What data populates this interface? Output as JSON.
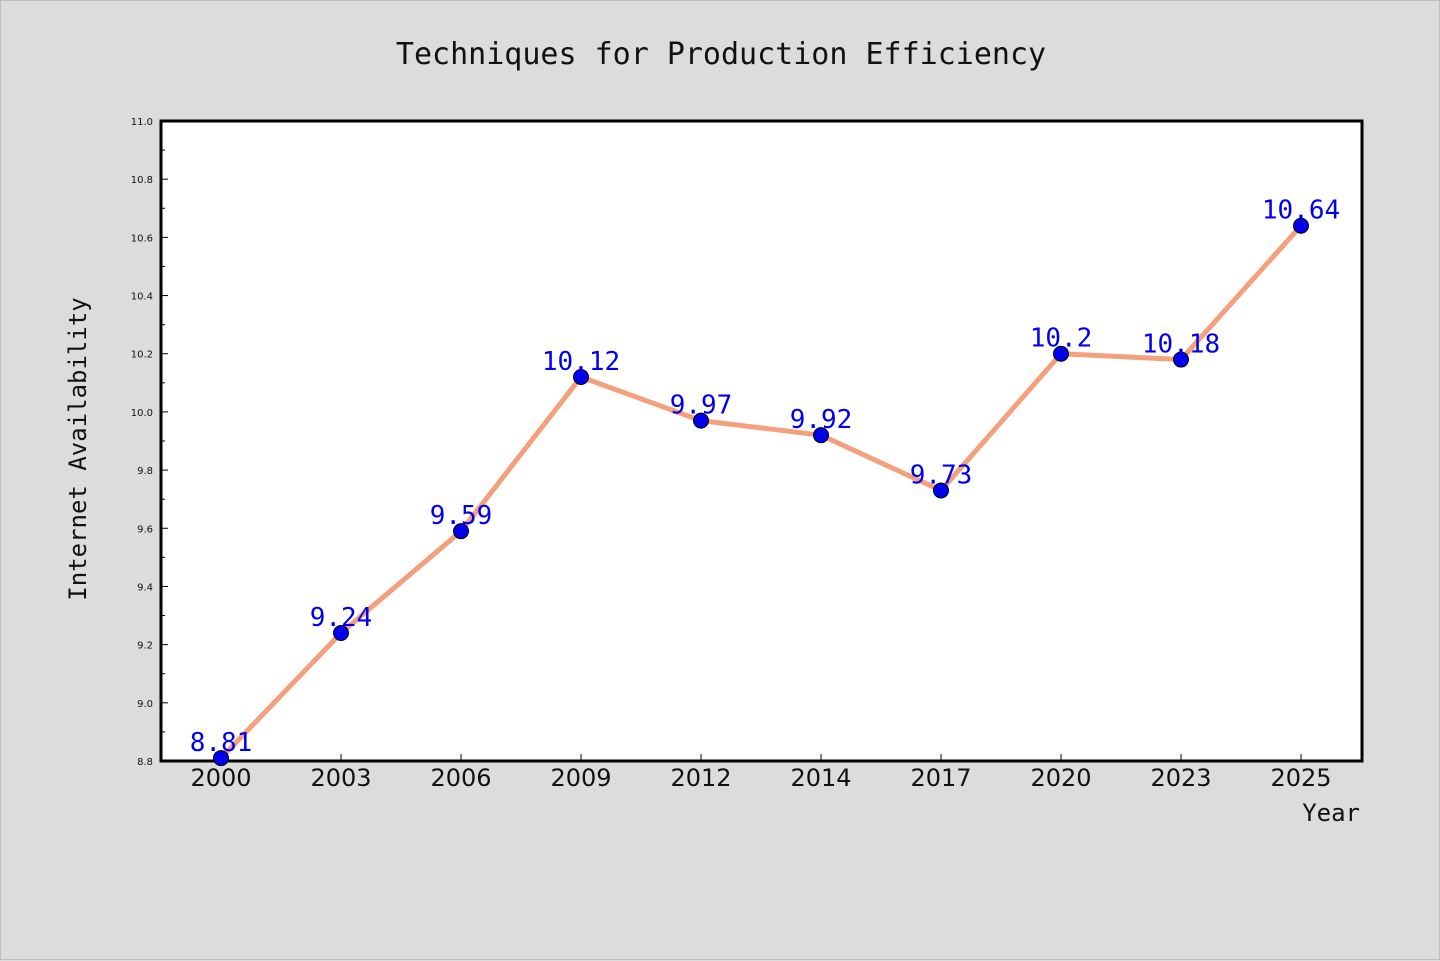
{
  "chart_data": {
    "type": "line",
    "title": "Techniques for Production Efficiency",
    "xlabel": "Year",
    "ylabel": "Internet Availability",
    "categories": [
      "2000",
      "2003",
      "2006",
      "2009",
      "2012",
      "2014",
      "2017",
      "2020",
      "2023",
      "2025"
    ],
    "series": [
      {
        "values": [
          8.81,
          9.24,
          9.59,
          10.12,
          9.97,
          9.92,
          9.73,
          10.2,
          10.18,
          10.64
        ],
        "labels": [
          "8.81",
          "9.24",
          "9.59",
          "10.12",
          "9.97",
          "9.92",
          "9.73",
          "10.2",
          "10.18",
          "10.64"
        ]
      }
    ],
    "ylim": [
      8.8,
      11.0
    ],
    "yticks": [
      "8.8",
      "9.0",
      "9.2",
      "9.4",
      "9.6",
      "9.8",
      "10.0",
      "10.2",
      "10.4",
      "10.6",
      "10.8",
      "11.0"
    ],
    "grid": false,
    "colors": {
      "line": "#f4a07c",
      "marker": "#0000ee",
      "marker_edge": "#000000",
      "data_label": "#0000ee",
      "plot_background": "#ffffff",
      "figure_background": "#dcdcdc"
    }
  }
}
